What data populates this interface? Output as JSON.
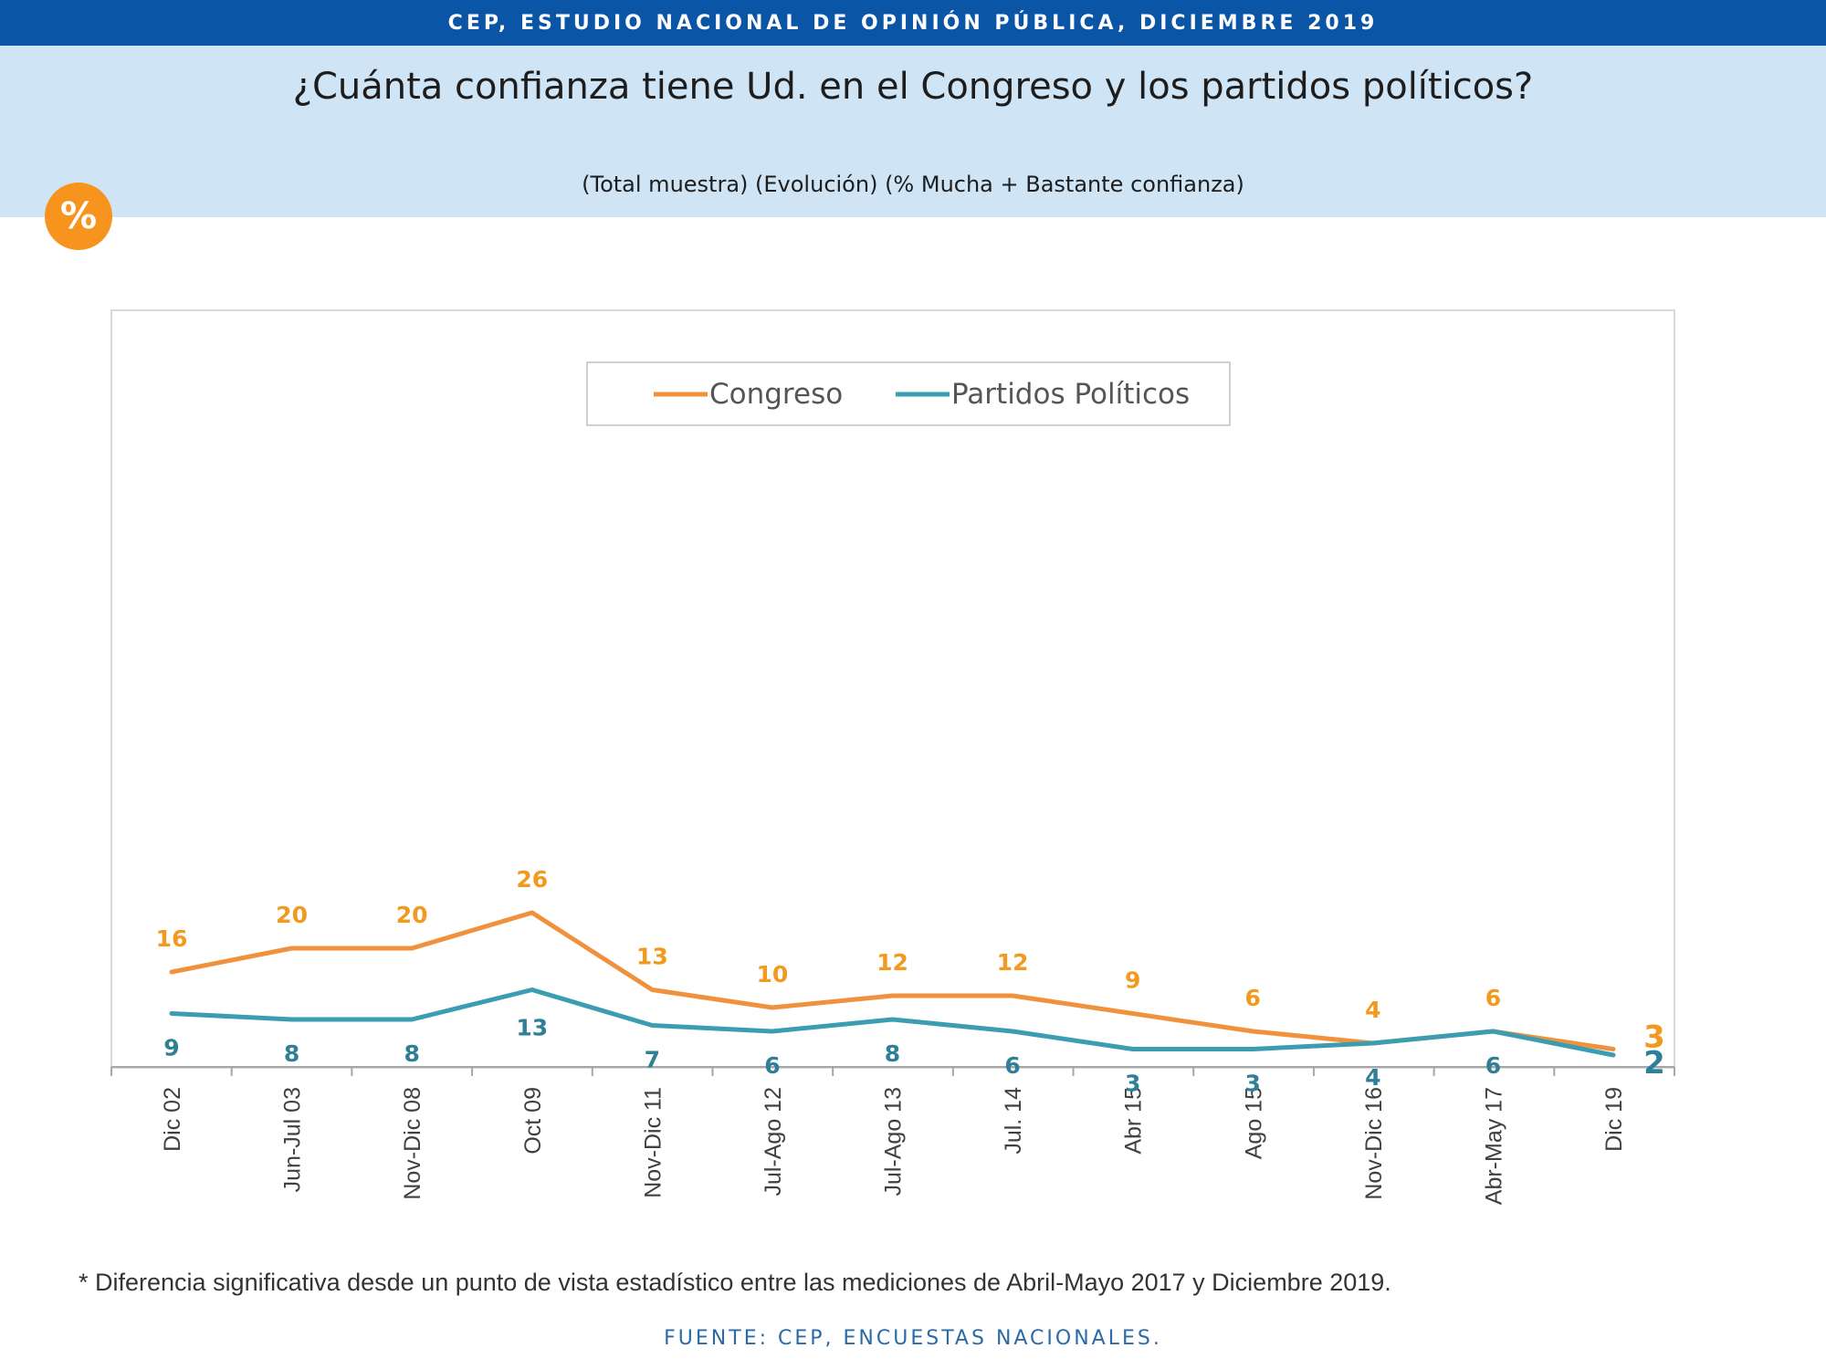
{
  "header": {
    "banner": "CEP, ESTUDIO NACIONAL DE OPINIÓN PÚBLICA, DICIEMBRE 2019",
    "title": "¿Cuánta confianza tiene Ud. en el Congreso y los partidos políticos?",
    "subtitle": "(Total muestra) (Evolución) (% Mucha + Bastante confianza)",
    "badge": "%"
  },
  "colors": {
    "banner": "#0a55a6",
    "band": "#cfe4f5",
    "badge": "#f7941d",
    "congreso": "#f0923d",
    "partidos": "#3b9db2",
    "congreso_label": "#f29a1f",
    "partidos_label": "#2f7f96"
  },
  "chart_data": {
    "type": "line",
    "categories": [
      "Dic 02",
      "Jun-Jul 03",
      "Nov-Dic 08",
      "Oct 09",
      "Nov-Dic 11",
      "Jul-Ago 12",
      "Jul-Ago 13",
      "Jul. 14",
      "Abr 15",
      "Ago 15",
      "Nov-Dic 16",
      "Abr-May 17",
      "Dic 19"
    ],
    "series": [
      {
        "name": "Congreso",
        "values": [
          16,
          20,
          20,
          26,
          13,
          10,
          12,
          12,
          9,
          6,
          4,
          6,
          3
        ]
      },
      {
        "name": "Partidos Políticos",
        "values": [
          9,
          8,
          8,
          13,
          7,
          6,
          8,
          6,
          3,
          3,
          4,
          6,
          2
        ]
      }
    ],
    "ylim": [
      0,
      100
    ],
    "grid": false,
    "legend_position": "top-center"
  },
  "footer": {
    "note": "* Diferencia significativa desde un punto de vista estadístico entre las mediciones de Abril-Mayo 2017 y Diciembre 2019.",
    "source": "FUENTE: CEP, ENCUESTAS NACIONALES."
  }
}
